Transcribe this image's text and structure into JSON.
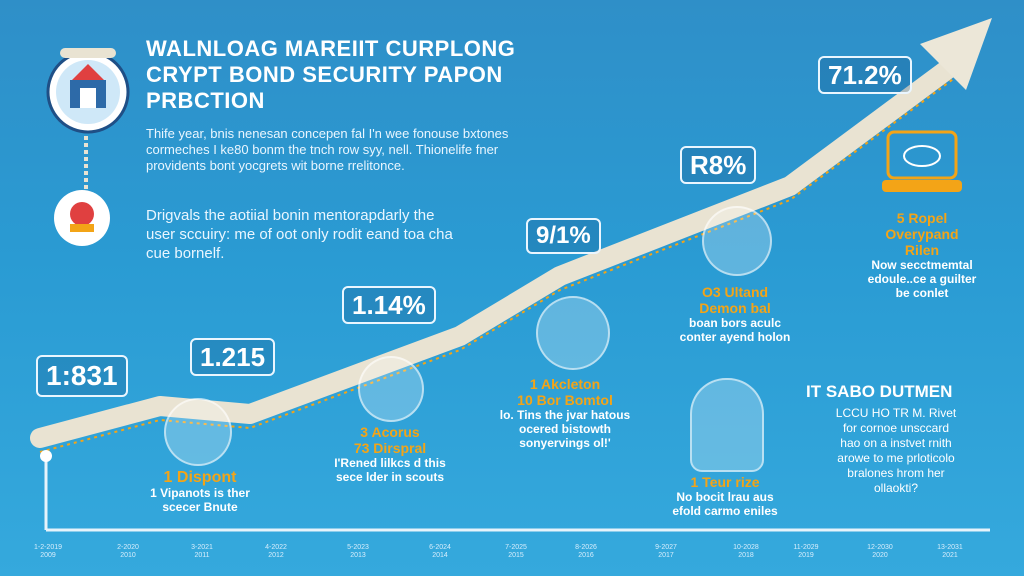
{
  "header": {
    "title_lines": [
      "WALNLOAG MAREIIT CURPLONG",
      "CRYPT BOND SECURITY PAPON",
      "PRBCTION"
    ]
  },
  "intro": {
    "paragraph1": [
      "Thife year, bnis nenesan concepen fal I'n wee fonouse bxtones",
      "cormeches I ke80 bonm the tnch row syy, nell. Thionelife fner",
      "providents bont yocgrets wit borne rrelitonce."
    ],
    "paragraph2": [
      "Drigvals the aotiial bonin mentorapdarly the",
      "user sccuiry: me of oot only rodit eand toa cha",
      "cue bornelf."
    ]
  },
  "values": {
    "v1": "1:831",
    "v2": "1.215",
    "v3": "1.14%",
    "v4": "9/1%",
    "v5": "R8%",
    "v6": "71.2%"
  },
  "milestones": {
    "m1": {
      "title": "1 Dispont",
      "desc": [
        "1 Vipanots is ther",
        "scecer Bnute"
      ]
    },
    "m2": {
      "title": [
        "3 Acorus",
        "73 Dirspral"
      ],
      "desc": [
        "I'Rened lilkcs d this",
        "sece lder in scouts"
      ]
    },
    "m3": {
      "title": [
        "1 Akcleton",
        "10 Bor Bomtol"
      ],
      "desc": [
        "lo. Tins the jvar hatous",
        "ocered bistowth",
        "sonyervings ol!'"
      ]
    },
    "m4": {
      "title": [
        "O3 Ultand",
        "Demon bal"
      ],
      "desc": [
        "boan bors aculc",
        "conter ayend holon"
      ]
    },
    "m5": {
      "title": [
        "1 Teur rize"
      ],
      "desc": [
        "No bocit lrau aus",
        "efold carmo eniles"
      ]
    },
    "m6": {
      "title": [
        "5 Ropel",
        "Overypand",
        "Rilen"
      ],
      "desc": [
        "Now secctmemtal",
        "edoule..ce a guilter",
        "be conlet"
      ]
    }
  },
  "sidebar": {
    "heading": "IT SABO DUTMEN",
    "lines": [
      "LCCU HO TR M. Rivet",
      "for cornoe unsccard",
      "hao on a instvet rnith",
      "arowe to me prloticolo",
      "bralones hrom her",
      "ollaokti?"
    ]
  },
  "timeline_ticks": [
    [
      "1-2-2019",
      "2009"
    ],
    [
      "2-2020",
      "2010"
    ],
    [
      "3-2021",
      "2011"
    ],
    [
      "4-2022",
      "2012"
    ],
    [
      "5-2023",
      "2013"
    ],
    [
      "6-2024",
      "2014"
    ],
    [
      "7-2025",
      "2015"
    ],
    [
      "8-2026",
      "2016"
    ],
    [
      "9-2027",
      "2017"
    ],
    [
      "10-2028",
      "2018"
    ],
    [
      "11-2029",
      "2019"
    ],
    [
      "12-2030",
      "2020"
    ],
    [
      "13-2031",
      "2021"
    ]
  ],
  "colors": {
    "accent": "#f3a417",
    "arrow": "#ece7d8",
    "background": "#2a9bd3"
  }
}
